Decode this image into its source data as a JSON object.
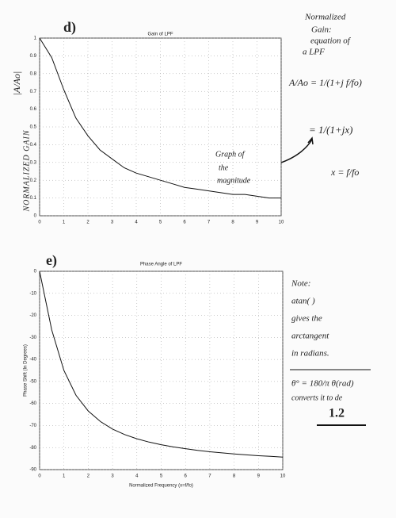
{
  "chart_data": [
    {
      "type": "line",
      "title": "Gain of LPF",
      "panel_label": "d)",
      "ylabel": "NORMALIZED GAIN",
      "ylabel_symbol": "|A/Ao|",
      "x": [
        0,
        0.5,
        1,
        1.5,
        2,
        2.5,
        3,
        3.5,
        4,
        4.5,
        5,
        5.5,
        6,
        6.5,
        7,
        7.5,
        8,
        8.5,
        9,
        9.5,
        10
      ],
      "values": [
        1.0,
        0.89,
        0.71,
        0.55,
        0.45,
        0.37,
        0.32,
        0.27,
        0.24,
        0.22,
        0.2,
        0.18,
        0.16,
        0.15,
        0.14,
        0.13,
        0.12,
        0.12,
        0.11,
        0.1,
        0.1
      ],
      "color": "#111111",
      "xlim": [
        0,
        10
      ],
      "ylim": [
        0,
        1
      ],
      "xticks": [
        0,
        1,
        2,
        3,
        4,
        5,
        6,
        7,
        8,
        9,
        10
      ],
      "yticks": [
        0,
        0.1,
        0.2,
        0.3,
        0.4,
        0.5,
        0.6,
        0.7,
        0.8,
        0.9,
        1
      ],
      "grid": true,
      "annotations": [
        "Normalized",
        "Gain:",
        "equation of",
        "a LPF",
        "A/Ao = 1/(1+j f/fo)",
        "= 1/(1+jx)",
        "x = f/fo",
        "Graph of",
        "the",
        "magnitude"
      ]
    },
    {
      "type": "line",
      "title": "Phase Angle of LPF",
      "panel_label": "e)",
      "ylabel": "Phase Shift (In Degrees)",
      "xlabel": "Normalized Frequency (x=f/fo)",
      "x": [
        0,
        0.5,
        1,
        1.5,
        2,
        2.5,
        3,
        3.5,
        4,
        4.5,
        5,
        5.5,
        6,
        6.5,
        7,
        7.5,
        8,
        8.5,
        9,
        9.5,
        10
      ],
      "values": [
        0,
        -26.6,
        -45,
        -56.3,
        -63.4,
        -68.2,
        -71.6,
        -74.1,
        -76,
        -77.5,
        -78.7,
        -79.7,
        -80.5,
        -81.3,
        -81.9,
        -82.4,
        -82.9,
        -83.3,
        -83.7,
        -84,
        -84.3
      ],
      "color": "#111111",
      "xlim": [
        0,
        10
      ],
      "ylim": [
        -90,
        0
      ],
      "xticks": [
        0,
        1,
        2,
        3,
        4,
        5,
        6,
        7,
        8,
        9,
        10
      ],
      "yticks": [
        -90,
        -80,
        -70,
        -60,
        -50,
        -40,
        -30,
        -20,
        -10,
        0
      ],
      "grid": true,
      "annotations": [
        "Note:",
        "atan( )",
        "gives the",
        "arctangent",
        "in radians.",
        "θ° = 180/π θ(rad)",
        "converts it to de",
        "1.2"
      ]
    }
  ]
}
